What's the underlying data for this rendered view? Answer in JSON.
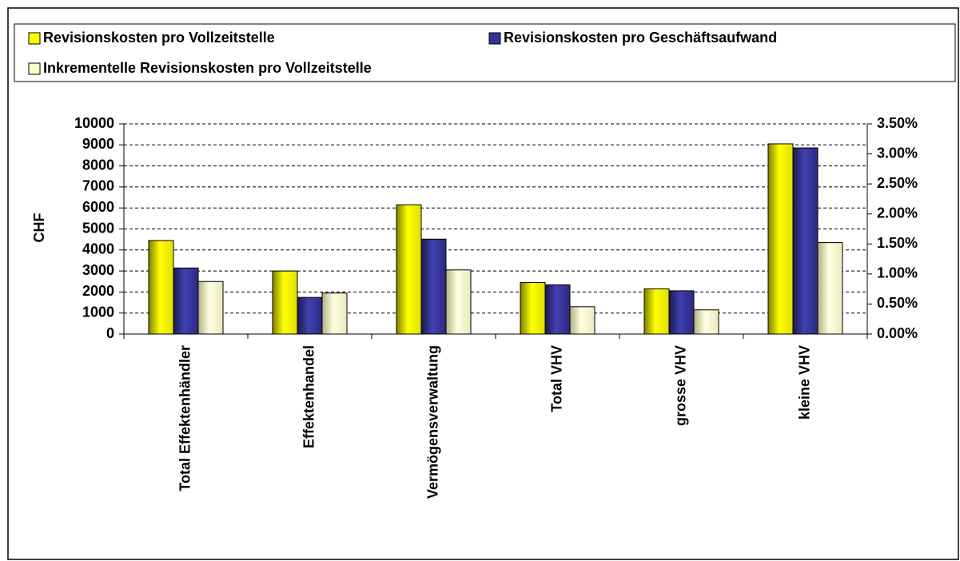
{
  "chart_data": {
    "type": "bar",
    "ylabel": "CHF",
    "categories": [
      "Total Effektenhändler",
      "Effektenhandel",
      "Vermögensverwaltung",
      "Total VHV",
      "grosse VHV",
      "kleine VHV"
    ],
    "series": [
      {
        "name": "Revisionskosten pro Vollzeitstelle",
        "color": "#ffff00",
        "values": [
          4450,
          3000,
          6150,
          2450,
          2150,
          9050
        ]
      },
      {
        "name": "Revisionskosten pro Geschäftsaufwand",
        "color": "#333399",
        "axis": "y2",
        "values": [
          1.1,
          0.61,
          1.58,
          0.82,
          0.72,
          3.1
        ]
      },
      {
        "name": "Inkrementelle Revisionskosten pro Vollzeitstelle",
        "color": "#ffffcc",
        "values": [
          2500,
          1950,
          3050,
          1300,
          1150,
          4350
        ]
      }
    ],
    "ylim": [
      0,
      10000
    ],
    "yticks": [
      0,
      1000,
      2000,
      3000,
      4000,
      5000,
      6000,
      7000,
      8000,
      9000,
      10000
    ],
    "y2lim": [
      0,
      3.5
    ],
    "y2ticks": [
      {
        "value": 0,
        "label": "0.00%"
      },
      {
        "value": 0.5,
        "label": "0.50%"
      },
      {
        "value": 1,
        "label": "1.00%"
      },
      {
        "value": 1.5,
        "label": "1.50%"
      },
      {
        "value": 2,
        "label": "2.00%"
      },
      {
        "value": 2.5,
        "label": "2.50%"
      },
      {
        "value": 3,
        "label": "3.00%"
      },
      {
        "value": 3.5,
        "label": "3.50%"
      }
    ],
    "grid": true
  }
}
